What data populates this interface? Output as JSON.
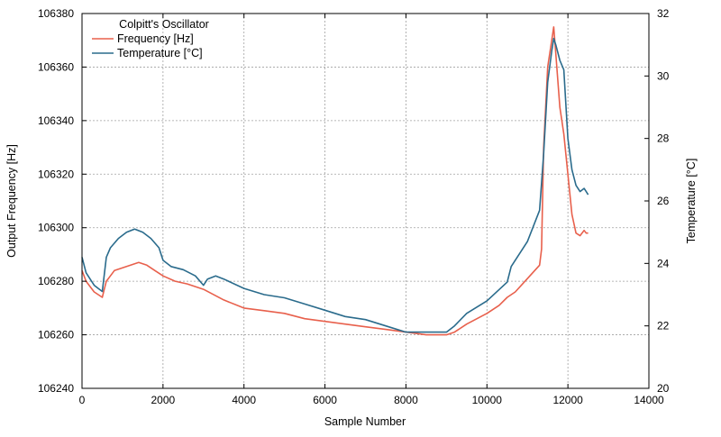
{
  "chart_data": {
    "type": "line",
    "title": "",
    "legend": {
      "title": "Colpitt's Oscillator",
      "placement": "top-left"
    },
    "xlabel": "Sample Number",
    "ylabel": "Output Frequency [Hz]",
    "y2label": "Temperature [°C]",
    "xlim": [
      0,
      14000
    ],
    "ylim": [
      106240,
      106380
    ],
    "y2lim": [
      20,
      32
    ],
    "x_ticks": [
      0,
      2000,
      4000,
      6000,
      8000,
      10000,
      12000,
      14000
    ],
    "y_ticks": [
      106240,
      106260,
      106280,
      106300,
      106320,
      106340,
      106360,
      106380
    ],
    "y2_ticks": [
      20,
      22,
      24,
      26,
      28,
      30,
      32
    ],
    "grid": true,
    "series": [
      {
        "name": "Frequency [Hz]",
        "axis": "left",
        "color": "#e8604c",
        "x": [
          0,
          100,
          200,
          300,
          400,
          500,
          550,
          600,
          700,
          800,
          1000,
          1200,
          1400,
          1600,
          1800,
          2000,
          2300,
          2600,
          3000,
          3500,
          4000,
          4500,
          5000,
          5500,
          6000,
          6500,
          7000,
          7500,
          8000,
          8500,
          9000,
          9200,
          9500,
          10000,
          10300,
          10500,
          10700,
          11000,
          11300,
          11350,
          11400,
          11500,
          11600,
          11650,
          11700,
          11800,
          11900,
          12000,
          12100,
          12200,
          12300,
          12400,
          12450,
          12500
        ],
        "values": [
          106284,
          106280,
          106278,
          106276,
          106275,
          106274,
          106277,
          106280,
          106282,
          106284,
          106285,
          106286,
          106287,
          106286,
          106284,
          106282,
          106280,
          106279,
          106277,
          106273,
          106270,
          106269,
          106268,
          106266,
          106265,
          106264,
          106263,
          106262,
          106261,
          106260,
          106260,
          106261,
          106264,
          106268,
          106271,
          106274,
          106276,
          106281,
          106286,
          106292,
          106330,
          106360,
          106370,
          106375,
          106365,
          106345,
          106335,
          106320,
          106305,
          106298,
          106297,
          106299,
          106298,
          106298
        ]
      },
      {
        "name": "Temperature [°C]",
        "axis": "right",
        "color": "#2a6b8c",
        "x": [
          0,
          100,
          200,
          300,
          400,
          500,
          600,
          700,
          900,
          1100,
          1300,
          1500,
          1700,
          1900,
          2000,
          2200,
          2500,
          2800,
          3000,
          3100,
          3300,
          3500,
          4000,
          4500,
          5000,
          5500,
          6000,
          6500,
          7000,
          7500,
          8000,
          8500,
          9000,
          9200,
          9500,
          10000,
          10500,
          10600,
          11000,
          11300,
          11400,
          11500,
          11600,
          11650,
          11700,
          11800,
          11900,
          12000,
          12100,
          12200,
          12300,
          12400,
          12450,
          12500
        ],
        "values": [
          24.2,
          23.7,
          23.5,
          23.3,
          23.2,
          23.1,
          24.2,
          24.5,
          24.8,
          25.0,
          25.1,
          25.0,
          24.8,
          24.5,
          24.1,
          23.9,
          23.8,
          23.6,
          23.3,
          23.5,
          23.6,
          23.5,
          23.2,
          23.0,
          22.9,
          22.7,
          22.5,
          22.3,
          22.2,
          22.0,
          21.8,
          21.8,
          21.8,
          22.0,
          22.4,
          22.8,
          23.4,
          23.9,
          24.7,
          25.7,
          27.5,
          29.8,
          30.8,
          31.2,
          31.0,
          30.5,
          30.2,
          28.0,
          27.0,
          26.5,
          26.3,
          26.4,
          26.3,
          26.2
        ]
      }
    ]
  }
}
